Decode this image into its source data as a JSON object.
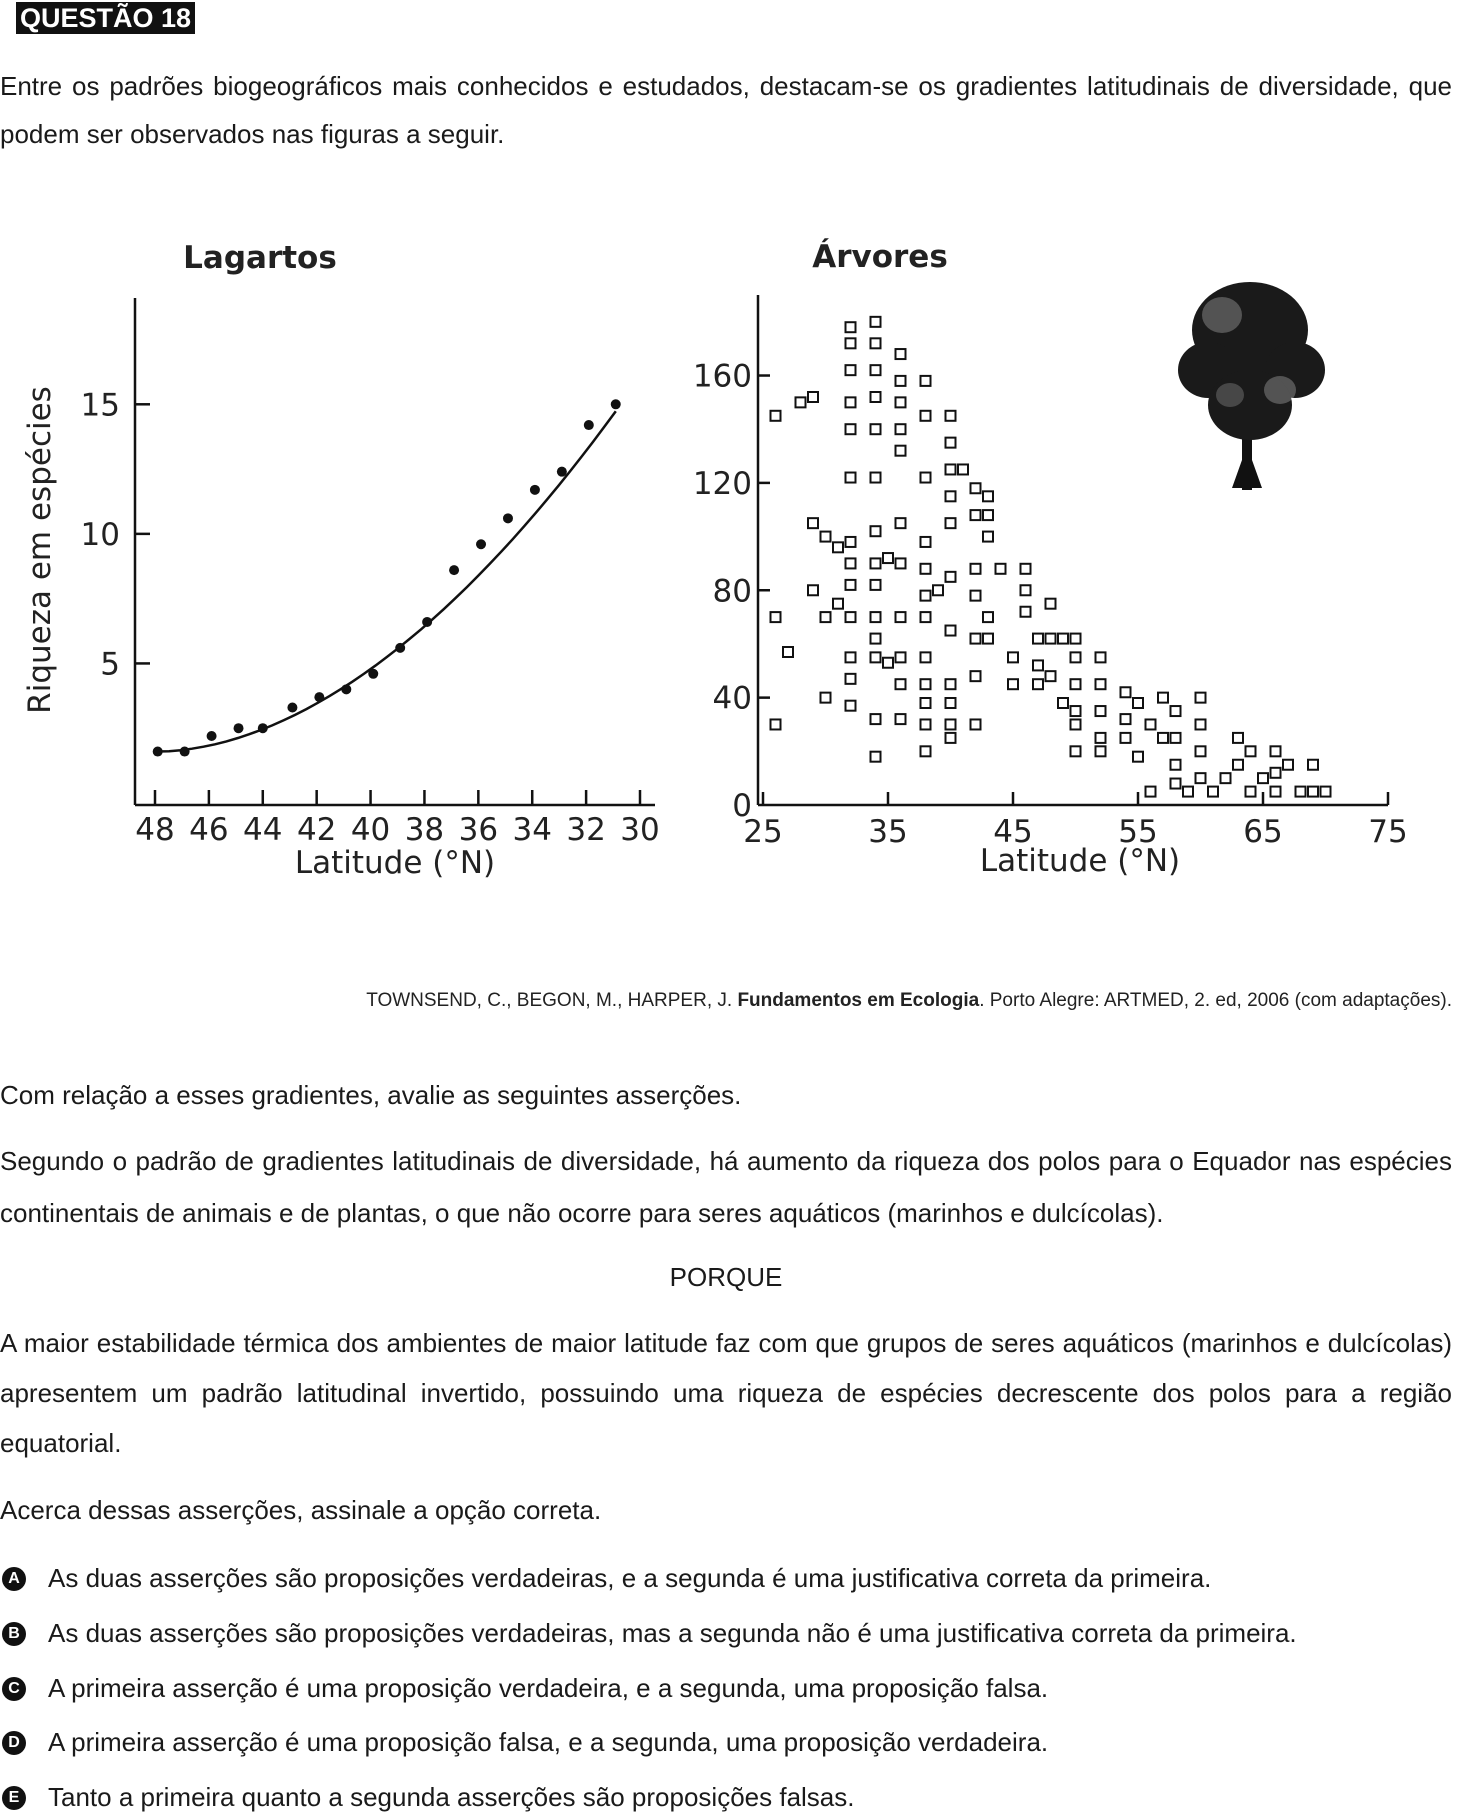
{
  "header": {
    "label": "QUESTÃO 18"
  },
  "intro": "Entre os padrões biogeográficos mais conhecidos e estudados, destacam-se os gradientes latitudinais de diversidade, que podem ser observados nas figuras a seguir.",
  "chart_data": [
    {
      "type": "scatter",
      "title": "Lagartos",
      "xlabel": "Latitude (°N)",
      "ylabel": "Riqueza em espécies",
      "x_ticks": [
        "48",
        "46",
        "44",
        "42",
        "40",
        "38",
        "36",
        "34",
        "32",
        "30"
      ],
      "y_ticks": [
        "5",
        "10",
        "15"
      ],
      "xlim": [
        48,
        30
      ],
      "ylim": [
        0,
        18
      ],
      "x_axis_reversed": true,
      "points": [
        {
          "x": 47.9,
          "y": 1.6
        },
        {
          "x": 46.9,
          "y": 1.6
        },
        {
          "x": 45.9,
          "y": 2.2
        },
        {
          "x": 44.9,
          "y": 2.5
        },
        {
          "x": 44.0,
          "y": 2.5
        },
        {
          "x": 42.9,
          "y": 3.3
        },
        {
          "x": 41.9,
          "y": 3.7
        },
        {
          "x": 40.9,
          "y": 4.0
        },
        {
          "x": 39.9,
          "y": 4.6
        },
        {
          "x": 38.9,
          "y": 5.6
        },
        {
          "x": 37.9,
          "y": 6.6
        },
        {
          "x": 36.9,
          "y": 8.6
        },
        {
          "x": 35.9,
          "y": 9.6
        },
        {
          "x": 34.9,
          "y": 10.6
        },
        {
          "x": 33.9,
          "y": 11.7
        },
        {
          "x": 32.9,
          "y": 12.4
        },
        {
          "x": 31.9,
          "y": 14.2
        },
        {
          "x": 30.9,
          "y": 15.0
        }
      ],
      "trend_line": true
    },
    {
      "type": "scatter",
      "title": "Árvores",
      "xlabel": "Latitude (°N)",
      "ylabel": "",
      "x_ticks": [
        "25",
        "35",
        "45",
        "55",
        "65",
        "75"
      ],
      "y_ticks": [
        "0",
        "40",
        "80",
        "120",
        "160"
      ],
      "xlim": [
        25,
        75
      ],
      "ylim": [
        0,
        190
      ],
      "marker": "square",
      "points": [
        {
          "x": 26,
          "y": 30
        },
        {
          "x": 26,
          "y": 70
        },
        {
          "x": 26,
          "y": 145
        },
        {
          "x": 27,
          "y": 57
        },
        {
          "x": 29,
          "y": 105
        },
        {
          "x": 29,
          "y": 80
        },
        {
          "x": 30,
          "y": 100
        },
        {
          "x": 30,
          "y": 70
        },
        {
          "x": 30,
          "y": 40
        },
        {
          "x": 31,
          "y": 96
        },
        {
          "x": 28,
          "y": 150
        },
        {
          "x": 29,
          "y": 152
        },
        {
          "x": 31,
          "y": 75
        },
        {
          "x": 32,
          "y": 172
        },
        {
          "x": 32,
          "y": 178
        },
        {
          "x": 32,
          "y": 162
        },
        {
          "x": 32,
          "y": 150
        },
        {
          "x": 32,
          "y": 140
        },
        {
          "x": 32,
          "y": 122
        },
        {
          "x": 32,
          "y": 98
        },
        {
          "x": 32,
          "y": 90
        },
        {
          "x": 32,
          "y": 82
        },
        {
          "x": 32,
          "y": 70
        },
        {
          "x": 32,
          "y": 55
        },
        {
          "x": 32,
          "y": 47
        },
        {
          "x": 32,
          "y": 37
        },
        {
          "x": 34,
          "y": 180
        },
        {
          "x": 34,
          "y": 172
        },
        {
          "x": 34,
          "y": 162
        },
        {
          "x": 34,
          "y": 152
        },
        {
          "x": 34,
          "y": 140
        },
        {
          "x": 34,
          "y": 122
        },
        {
          "x": 34,
          "y": 102
        },
        {
          "x": 34,
          "y": 90
        },
        {
          "x": 34,
          "y": 82
        },
        {
          "x": 34,
          "y": 70
        },
        {
          "x": 34,
          "y": 62
        },
        {
          "x": 34,
          "y": 55
        },
        {
          "x": 34,
          "y": 32
        },
        {
          "x": 34,
          "y": 18
        },
        {
          "x": 35,
          "y": 92
        },
        {
          "x": 35,
          "y": 53
        },
        {
          "x": 36,
          "y": 168
        },
        {
          "x": 36,
          "y": 158
        },
        {
          "x": 36,
          "y": 150
        },
        {
          "x": 36,
          "y": 140
        },
        {
          "x": 36,
          "y": 132
        },
        {
          "x": 36,
          "y": 105
        },
        {
          "x": 36,
          "y": 90
        },
        {
          "x": 36,
          "y": 70
        },
        {
          "x": 36,
          "y": 55
        },
        {
          "x": 36,
          "y": 45
        },
        {
          "x": 36,
          "y": 32
        },
        {
          "x": 38,
          "y": 158
        },
        {
          "x": 38,
          "y": 145
        },
        {
          "x": 38,
          "y": 122
        },
        {
          "x": 38,
          "y": 98
        },
        {
          "x": 38,
          "y": 88
        },
        {
          "x": 38,
          "y": 78
        },
        {
          "x": 38,
          "y": 70
        },
        {
          "x": 38,
          "y": 55
        },
        {
          "x": 38,
          "y": 45
        },
        {
          "x": 38,
          "y": 38
        },
        {
          "x": 38,
          "y": 30
        },
        {
          "x": 38,
          "y": 20
        },
        {
          "x": 39,
          "y": 80
        },
        {
          "x": 40,
          "y": 145
        },
        {
          "x": 40,
          "y": 135
        },
        {
          "x": 40,
          "y": 125
        },
        {
          "x": 40,
          "y": 115
        },
        {
          "x": 40,
          "y": 105
        },
        {
          "x": 40,
          "y": 85
        },
        {
          "x": 40,
          "y": 65
        },
        {
          "x": 40,
          "y": 45
        },
        {
          "x": 40,
          "y": 38
        },
        {
          "x": 40,
          "y": 30
        },
        {
          "x": 40,
          "y": 25
        },
        {
          "x": 41,
          "y": 125
        },
        {
          "x": 42,
          "y": 118
        },
        {
          "x": 42,
          "y": 108
        },
        {
          "x": 42,
          "y": 88
        },
        {
          "x": 42,
          "y": 78
        },
        {
          "x": 42,
          "y": 62
        },
        {
          "x": 42,
          "y": 48
        },
        {
          "x": 42,
          "y": 30
        },
        {
          "x": 43,
          "y": 115
        },
        {
          "x": 43,
          "y": 108
        },
        {
          "x": 43,
          "y": 100
        },
        {
          "x": 43,
          "y": 70
        },
        {
          "x": 43,
          "y": 62
        },
        {
          "x": 44,
          "y": 88
        },
        {
          "x": 45,
          "y": 55
        },
        {
          "x": 45,
          "y": 45
        },
        {
          "x": 46,
          "y": 88
        },
        {
          "x": 46,
          "y": 80
        },
        {
          "x": 46,
          "y": 72
        },
        {
          "x": 47,
          "y": 62
        },
        {
          "x": 47,
          "y": 52
        },
        {
          "x": 47,
          "y": 45
        },
        {
          "x": 48,
          "y": 75
        },
        {
          "x": 48,
          "y": 62
        },
        {
          "x": 48,
          "y": 48
        },
        {
          "x": 49,
          "y": 38
        },
        {
          "x": 49,
          "y": 62
        },
        {
          "x": 50,
          "y": 62
        },
        {
          "x": 50,
          "y": 55
        },
        {
          "x": 50,
          "y": 45
        },
        {
          "x": 50,
          "y": 35
        },
        {
          "x": 50,
          "y": 20
        },
        {
          "x": 50,
          "y": 30
        },
        {
          "x": 52,
          "y": 55
        },
        {
          "x": 52,
          "y": 45
        },
        {
          "x": 52,
          "y": 35
        },
        {
          "x": 52,
          "y": 25
        },
        {
          "x": 52,
          "y": 20
        },
        {
          "x": 54,
          "y": 42
        },
        {
          "x": 54,
          "y": 32
        },
        {
          "x": 54,
          "y": 25
        },
        {
          "x": 55,
          "y": 18
        },
        {
          "x": 55,
          "y": 38
        },
        {
          "x": 56,
          "y": 30
        },
        {
          "x": 56,
          "y": 5
        },
        {
          "x": 57,
          "y": 25
        },
        {
          "x": 57,
          "y": 40
        },
        {
          "x": 58,
          "y": 35
        },
        {
          "x": 58,
          "y": 25
        },
        {
          "x": 58,
          "y": 15
        },
        {
          "x": 58,
          "y": 8
        },
        {
          "x": 59,
          "y": 5
        },
        {
          "x": 60,
          "y": 40
        },
        {
          "x": 60,
          "y": 30
        },
        {
          "x": 60,
          "y": 20
        },
        {
          "x": 60,
          "y": 10
        },
        {
          "x": 61,
          "y": 5
        },
        {
          "x": 62,
          "y": 10
        },
        {
          "x": 63,
          "y": 25
        },
        {
          "x": 63,
          "y": 15
        },
        {
          "x": 64,
          "y": 5
        },
        {
          "x": 64,
          "y": 20
        },
        {
          "x": 65,
          "y": 10
        },
        {
          "x": 66,
          "y": 20
        },
        {
          "x": 66,
          "y": 12
        },
        {
          "x": 66,
          "y": 5
        },
        {
          "x": 67,
          "y": 15
        },
        {
          "x": 68,
          "y": 5
        },
        {
          "x": 69,
          "y": 15
        },
        {
          "x": 69,
          "y": 5
        },
        {
          "x": 70,
          "y": 5
        }
      ]
    }
  ],
  "citation": {
    "before": "TOWNSEND, C., BEGON, M., HARPER, J. ",
    "bold": "Fundamentos em Ecologia",
    "after": ". Porto Alegre: ARTMED, 2. ed, 2006 (com adaptações)."
  },
  "lead": "Com relação a esses gradientes, avalie as seguintes asserções.",
  "assertion1": "Segundo o padrão de gradientes latitudinais de diversidade, há aumento da riqueza dos polos para o Equador nas espécies continentais de animais e de plantas, o que não ocorre para seres aquáticos (marinhos e dulcícolas).",
  "porque": "PORQUE",
  "assertion2": "A maior estabilidade térmica dos ambientes de maior latitude faz com que grupos de seres aquáticos (marinhos e dulcícolas) apresentem um padrão latitudinal invertido, possuindo uma riqueza de espécies decrescente dos polos para a região equatorial.",
  "prompt": "Acerca dessas asserções, assinale a opção correta.",
  "options": [
    {
      "letter": "A",
      "text": "As duas asserções são proposições verdadeiras, e a segunda é uma justificativa correta da primeira."
    },
    {
      "letter": "B",
      "text": "As duas asserções são proposições verdadeiras, mas a segunda não é uma justificativa correta da primeira."
    },
    {
      "letter": "C",
      "text": "A primeira asserção é uma proposição verdadeira, e a segunda, uma proposição falsa."
    },
    {
      "letter": "D",
      "text": "A primeira asserção é uma proposição falsa, e a segunda, uma proposição verdadeira."
    },
    {
      "letter": "E",
      "text": "Tanto a primeira quanto a segunda asserções são proposições falsas."
    }
  ]
}
